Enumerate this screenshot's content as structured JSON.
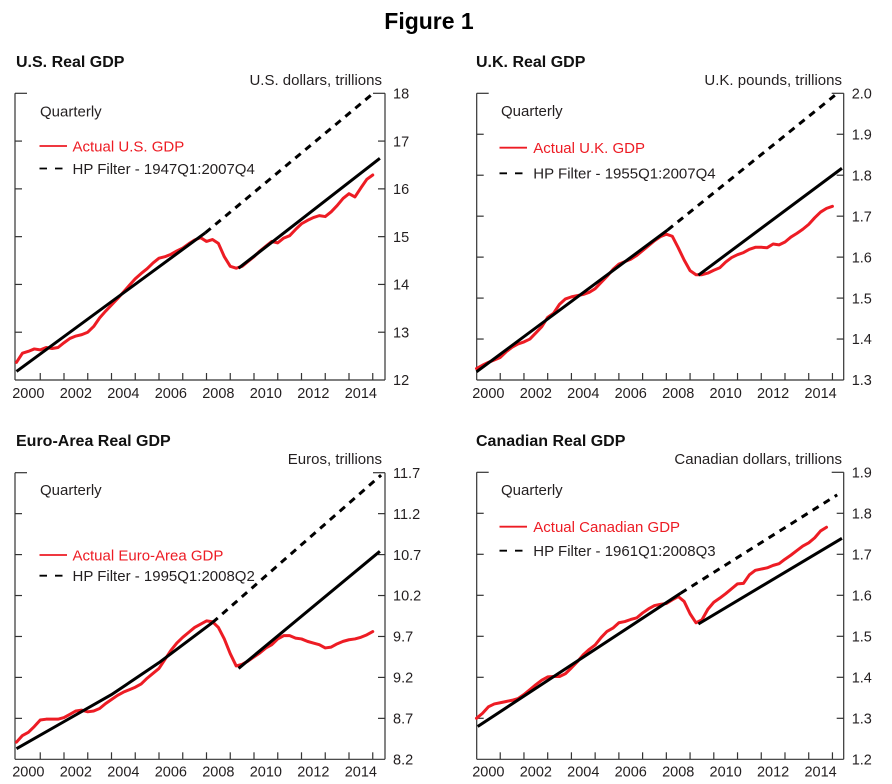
{
  "figure": {
    "title": "Figure 1"
  },
  "colors": {
    "actual": "#ed1c24",
    "trend": "#000000",
    "text": "#231f20"
  },
  "chart_data": [
    {
      "type": "line",
      "title": "U.S. Real GDP",
      "ylabel": "U.S. dollars, trillions",
      "xlabel": "",
      "annotation": "Quarterly",
      "xlim": [
        2000,
        2015.5
      ],
      "ylim": [
        12,
        18
      ],
      "yticks": [
        12,
        13,
        14,
        15,
        16,
        17,
        18
      ],
      "ytick_labels": [
        "12",
        "13",
        "14",
        "15",
        "16",
        "17",
        "18"
      ],
      "xtick_years": [
        2001,
        2002,
        2003,
        2004,
        2005,
        2006,
        2007,
        2008,
        2009,
        2010,
        2011,
        2012,
        2013,
        2014,
        2015
      ],
      "xtick_labels": [
        "2000",
        "2002",
        "2004",
        "2006",
        "2008",
        "2010",
        "2012",
        "2014"
      ],
      "legend": [
        {
          "label": "Actual U.S. GDP",
          "style": "solid",
          "color": "#ed1c24"
        },
        {
          "label": "HP Filter - 1947Q1:2007Q4",
          "style": "dashed",
          "color": "#000000"
        }
      ],
      "legend_position": "top-left",
      "series": [
        {
          "name": "Actual U.S. GDP",
          "kind": "actual",
          "start_label": "2000Q1",
          "x_start": 2000.0,
          "x_step": 0.25,
          "values": [
            12.37,
            12.56,
            12.6,
            12.65,
            12.63,
            12.68,
            12.66,
            12.68,
            12.78,
            12.87,
            12.92,
            12.95,
            13.0,
            13.12,
            13.3,
            13.44,
            13.57,
            13.7,
            13.84,
            13.98,
            14.12,
            14.23,
            14.33,
            14.45,
            14.55,
            14.58,
            14.63,
            14.7,
            14.76,
            14.85,
            14.93,
            14.98,
            14.9,
            14.94,
            14.86,
            14.58,
            14.38,
            14.34,
            14.38,
            14.48,
            14.58,
            14.7,
            14.8,
            14.9,
            14.87,
            14.97,
            15.02,
            15.15,
            15.27,
            15.34,
            15.4,
            15.44,
            15.42,
            15.52,
            15.65,
            15.8,
            15.9,
            15.83,
            16.02,
            16.2,
            16.29
          ]
        },
        {
          "name": "HP Filter trend (in sample)",
          "kind": "trend",
          "style": "solid",
          "points": [
            [
              2000.0,
              12.18
            ],
            [
              2007.95,
              15.08
            ]
          ]
        },
        {
          "name": "HP Filter trend (projected)",
          "kind": "trend",
          "style": "dashed",
          "points": [
            [
              2007.95,
              15.08
            ],
            [
              2014.95,
              17.97
            ]
          ]
        },
        {
          "name": "Trend growth from 2009 trough",
          "kind": "trend",
          "style": "solid",
          "points": [
            [
              2009.35,
              14.34
            ],
            [
              2015.3,
              16.64
            ]
          ]
        }
      ]
    },
    {
      "type": "line",
      "title": "U.K. Real GDP",
      "ylabel": "U.K. pounds, trillions",
      "xlabel": "",
      "annotation": "Quarterly",
      "xlim": [
        2000,
        2015.5
      ],
      "ylim": [
        1.3,
        2.0
      ],
      "yticks": [
        1.3,
        1.4,
        1.5,
        1.6,
        1.7,
        1.8,
        1.9,
        2.0
      ],
      "ytick_labels": [
        "1.3",
        "1.4",
        "1.5",
        "1.6",
        "1.7",
        "1.8",
        "1.9",
        "2.0"
      ],
      "xtick_years": [
        2001,
        2002,
        2003,
        2004,
        2005,
        2006,
        2007,
        2008,
        2009,
        2010,
        2011,
        2012,
        2013,
        2014,
        2015
      ],
      "xtick_labels": [
        "2000",
        "2002",
        "2004",
        "2006",
        "2008",
        "2010",
        "2012",
        "2014"
      ],
      "legend": [
        {
          "label": "Actual U.K. GDP",
          "style": "solid",
          "color": "#ed1c24"
        },
        {
          "label": "HP Filter - 1955Q1:2007Q4",
          "style": "dashed",
          "color": "#000000"
        }
      ],
      "legend_position": "top-left",
      "series": [
        {
          "name": "Actual U.K. GDP",
          "kind": "actual",
          "start_label": "2000Q1",
          "x_start": 2000.0,
          "x_step": 0.25,
          "values": [
            1.328,
            1.336,
            1.343,
            1.349,
            1.355,
            1.369,
            1.38,
            1.388,
            1.393,
            1.4,
            1.415,
            1.43,
            1.453,
            1.463,
            1.485,
            1.498,
            1.503,
            1.506,
            1.509,
            1.514,
            1.523,
            1.538,
            1.553,
            1.57,
            1.583,
            1.589,
            1.595,
            1.604,
            1.616,
            1.628,
            1.64,
            1.65,
            1.656,
            1.651,
            1.623,
            1.593,
            1.567,
            1.557,
            1.557,
            1.561,
            1.568,
            1.574,
            1.588,
            1.599,
            1.606,
            1.611,
            1.619,
            1.624,
            1.624,
            1.623,
            1.632,
            1.63,
            1.637,
            1.649,
            1.658,
            1.668,
            1.68,
            1.696,
            1.71,
            1.719,
            1.724
          ]
        },
        {
          "name": "HP Filter trend (in sample)",
          "kind": "trend",
          "style": "solid",
          "points": [
            [
              2000.0,
              1.32
            ],
            [
              2008.05,
              1.666
            ]
          ]
        },
        {
          "name": "HP Filter trend (projected)",
          "kind": "trend",
          "style": "dashed",
          "points": [
            [
              2008.05,
              1.666
            ],
            [
              2015.1,
              1.995
            ]
          ]
        },
        {
          "name": "Trend growth from 2009 trough",
          "kind": "trend",
          "style": "solid",
          "points": [
            [
              2009.35,
              1.556
            ],
            [
              2015.4,
              1.817
            ]
          ]
        }
      ]
    },
    {
      "type": "line",
      "title": "Euro-Area Real GDP",
      "ylabel": "Euros, trillions",
      "xlabel": "",
      "annotation": "Quarterly",
      "xlim": [
        2000,
        2015.5
      ],
      "ylim": [
        8.2,
        11.7
      ],
      "yticks": [
        8.2,
        8.7,
        9.2,
        9.7,
        10.2,
        10.7,
        11.2,
        11.7
      ],
      "ytick_labels": [
        "8.2",
        "8.7",
        "9.2",
        "9.7",
        "10.2",
        "10.7",
        "11.2",
        "11.7"
      ],
      "xtick_years": [
        2001,
        2002,
        2003,
        2004,
        2005,
        2006,
        2007,
        2008,
        2009,
        2010,
        2011,
        2012,
        2013,
        2014,
        2015
      ],
      "xtick_labels": [
        "2000",
        "2002",
        "2004",
        "2006",
        "2008",
        "2010",
        "2012",
        "2014"
      ],
      "legend": [
        {
          "label": "Actual Euro-Area GDP",
          "style": "solid",
          "color": "#ed1c24"
        },
        {
          "label": "HP Filter - 1995Q1:2008Q2",
          "style": "dashed",
          "color": "#000000"
        }
      ],
      "legend_position": "middle-left",
      "series": [
        {
          "name": "Actual Euro-Area GDP",
          "kind": "actual",
          "start_label": "2000Q1",
          "x_start": 2000.0,
          "x_step": 0.25,
          "values": [
            8.41,
            8.49,
            8.53,
            8.6,
            8.68,
            8.69,
            8.69,
            8.69,
            8.71,
            8.75,
            8.79,
            8.8,
            8.78,
            8.79,
            8.82,
            8.88,
            8.93,
            8.98,
            9.02,
            9.05,
            9.08,
            9.12,
            9.19,
            9.25,
            9.31,
            9.42,
            9.53,
            9.62,
            9.69,
            9.75,
            9.81,
            9.85,
            9.89,
            9.88,
            9.81,
            9.67,
            9.49,
            9.34,
            9.36,
            9.4,
            9.45,
            9.5,
            9.56,
            9.6,
            9.67,
            9.71,
            9.71,
            9.68,
            9.67,
            9.64,
            9.62,
            9.6,
            9.56,
            9.57,
            9.61,
            9.64,
            9.66,
            9.67,
            9.69,
            9.72,
            9.76
          ]
        },
        {
          "name": "HP Filter trend (in sample)",
          "kind": "trend",
          "style": "solid",
          "points": [
            [
              2000.0,
              8.33
            ],
            [
              2002.0,
              8.66
            ],
            [
              2004.0,
              8.99
            ],
            [
              2006.0,
              9.38
            ],
            [
              2008.25,
              9.87
            ]
          ]
        },
        {
          "name": "HP Filter trend (projected)",
          "kind": "trend",
          "style": "dashed",
          "points": [
            [
              2008.25,
              9.87
            ],
            [
              2015.35,
              11.67
            ]
          ]
        },
        {
          "name": "Trend growth from 2009 trough",
          "kind": "trend",
          "style": "solid",
          "points": [
            [
              2009.35,
              9.31
            ],
            [
              2015.3,
              10.74
            ]
          ]
        }
      ]
    },
    {
      "type": "line",
      "title": "Canadian Real GDP",
      "ylabel": "Canadian dollars, trillions",
      "xlabel": "",
      "annotation": "Quarterly",
      "xlim": [
        2000,
        2015.5
      ],
      "ylim": [
        1.2,
        1.9
      ],
      "yticks": [
        1.2,
        1.3,
        1.4,
        1.5,
        1.6,
        1.7,
        1.8,
        1.9
      ],
      "ytick_labels": [
        "1.2",
        "1.3",
        "1.4",
        "1.5",
        "1.6",
        "1.7",
        "1.8",
        "1.9"
      ],
      "xtick_years": [
        2001,
        2002,
        2003,
        2004,
        2005,
        2006,
        2007,
        2008,
        2009,
        2010,
        2011,
        2012,
        2013,
        2014,
        2015
      ],
      "xtick_labels": [
        "2000",
        "2002",
        "2004",
        "2006",
        "2008",
        "2010",
        "2012",
        "2014"
      ],
      "legend": [
        {
          "label": "Actual Canadian GDP",
          "style": "solid",
          "color": "#ed1c24"
        },
        {
          "label": "HP Filter - 1961Q1:2008Q3",
          "style": "dashed",
          "color": "#000000"
        }
      ],
      "legend_position": "top-left",
      "series": [
        {
          "name": "Actual Canadian GDP",
          "kind": "actual",
          "start_label": "2000Q1",
          "x_start": 2000.0,
          "x_step": 0.25,
          "values": [
            1.3,
            1.312,
            1.328,
            1.335,
            1.338,
            1.341,
            1.344,
            1.348,
            1.358,
            1.37,
            1.382,
            1.393,
            1.401,
            1.402,
            1.402,
            1.409,
            1.423,
            1.438,
            1.455,
            1.468,
            1.479,
            1.497,
            1.512,
            1.52,
            1.533,
            1.536,
            1.541,
            1.545,
            1.557,
            1.567,
            1.575,
            1.578,
            1.58,
            1.589,
            1.597,
            1.585,
            1.555,
            1.533,
            1.54,
            1.566,
            1.583,
            1.593,
            1.604,
            1.616,
            1.628,
            1.629,
            1.65,
            1.661,
            1.664,
            1.667,
            1.673,
            1.677,
            1.688,
            1.698,
            1.709,
            1.72,
            1.728,
            1.74,
            1.757,
            1.766
          ]
        },
        {
          "name": "HP Filter trend (in sample)",
          "kind": "trend",
          "style": "solid",
          "points": [
            [
              2000.05,
              1.28
            ],
            [
              2008.6,
              1.605
            ]
          ]
        },
        {
          "name": "HP Filter trend (projected)",
          "kind": "trend",
          "style": "dashed",
          "points": [
            [
              2008.6,
              1.605
            ],
            [
              2015.2,
              1.845
            ]
          ]
        },
        {
          "name": "Trend growth from 2009 trough",
          "kind": "trend",
          "style": "solid",
          "points": [
            [
              2009.35,
              1.53
            ],
            [
              2015.4,
              1.739
            ]
          ]
        }
      ]
    }
  ]
}
